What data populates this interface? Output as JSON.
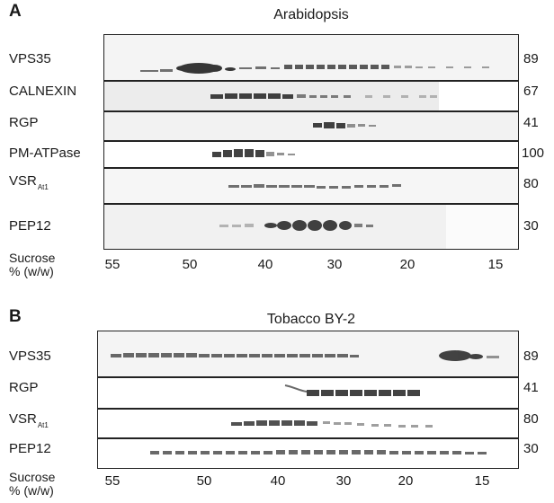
{
  "panels": [
    {
      "letter": "A",
      "title": "Arabidopsis",
      "rows": [
        {
          "name": "VPS35",
          "size": "89"
        },
        {
          "name": "CALNEXIN",
          "size": "67"
        },
        {
          "name": "RGP",
          "size": "41"
        },
        {
          "name": "PM-ATPase",
          "size": "100"
        },
        {
          "name": "VSR",
          "subscript": "At1",
          "size": "80"
        },
        {
          "name": "PEP12",
          "size": "30"
        }
      ],
      "sucrose_label_1": "Sucrose",
      "sucrose_label_2": "% (w/w)",
      "ticks": [
        "55",
        "50",
        "40",
        "30",
        "20",
        "15"
      ]
    },
    {
      "letter": "B",
      "title": "Tobacco BY-2",
      "rows": [
        {
          "name": "VPS35",
          "size": "89"
        },
        {
          "name": "RGP",
          "size": "41"
        },
        {
          "name": "VSR",
          "subscript": "At1",
          "size": "80"
        },
        {
          "name": "PEP12",
          "size": "30"
        }
      ],
      "sucrose_label_1": "Sucrose",
      "sucrose_label_2": "% (w/w)",
      "ticks": [
        "55",
        "50",
        "40",
        "30",
        "20",
        "15"
      ]
    }
  ]
}
